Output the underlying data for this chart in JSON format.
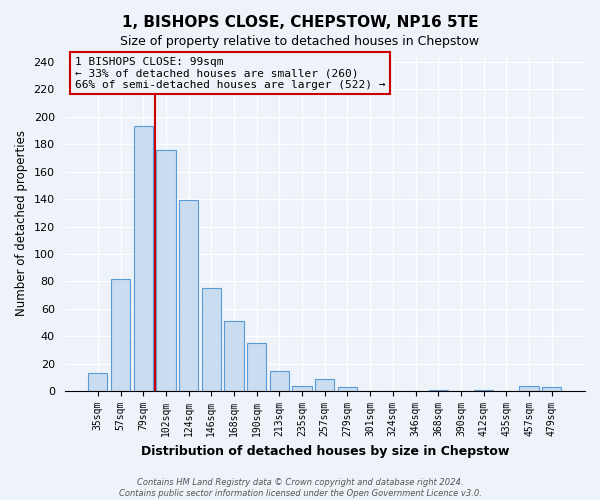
{
  "title": "1, BISHOPS CLOSE, CHEPSTOW, NP16 5TE",
  "subtitle": "Size of property relative to detached houses in Chepstow",
  "xlabel": "Distribution of detached houses by size in Chepstow",
  "ylabel": "Number of detached properties",
  "bar_labels": [
    "35sqm",
    "57sqm",
    "79sqm",
    "102sqm",
    "124sqm",
    "146sqm",
    "168sqm",
    "190sqm",
    "213sqm",
    "235sqm",
    "257sqm",
    "279sqm",
    "301sqm",
    "324sqm",
    "346sqm",
    "368sqm",
    "390sqm",
    "412sqm",
    "435sqm",
    "457sqm",
    "479sqm"
  ],
  "bar_values": [
    13,
    82,
    193,
    176,
    139,
    75,
    51,
    35,
    15,
    4,
    9,
    3,
    0,
    0,
    0,
    1,
    0,
    1,
    0,
    4,
    3
  ],
  "bar_color": "#c9dcf0",
  "bar_edge_color": "#5b9bd5",
  "annotation_text_line1": "1 BISHOPS CLOSE: 99sqm",
  "annotation_text_line2": "← 33% of detached houses are smaller (260)",
  "annotation_text_line3": "66% of semi-detached houses are larger (522) →",
  "vline_color": "#cc0000",
  "vline_index": 2.5,
  "ylim": [
    0,
    245
  ],
  "yticks": [
    0,
    20,
    40,
    60,
    80,
    100,
    120,
    140,
    160,
    180,
    200,
    220,
    240
  ],
  "footer_line1": "Contains HM Land Registry data © Crown copyright and database right 2024.",
  "footer_line2": "Contains public sector information licensed under the Open Government Licence v3.0.",
  "bg_color": "#eef2f9",
  "plot_bg_color": "#eef2f9",
  "grid_color": "#ffffff"
}
